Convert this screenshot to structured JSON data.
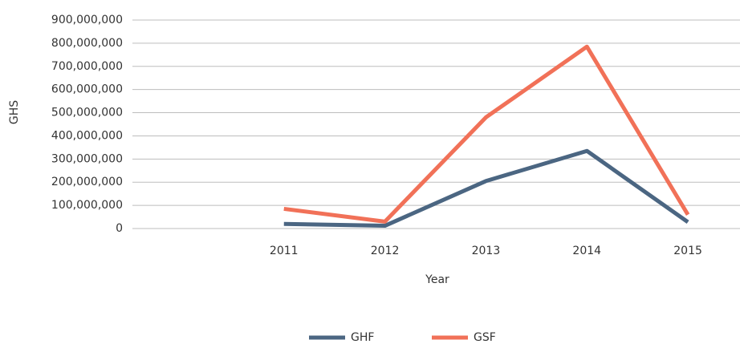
{
  "chart_data": {
    "type": "line",
    "x_label": "Year",
    "y_label": "GHS",
    "categories": [
      null,
      "2011",
      "2012",
      "2013",
      "2014",
      "2015"
    ],
    "series": [
      {
        "name": "GHF",
        "color": "#4b6682",
        "values": [
          null,
          20000000,
          12000000,
          205000000,
          335000000,
          28000000
        ]
      },
      {
        "name": "GSF",
        "color": "#f17158",
        "values": [
          null,
          85000000,
          30000000,
          480000000,
          785000000,
          60000000
        ]
      }
    ],
    "ylim": [
      0,
      900000000
    ],
    "yticks": [
      0,
      {
        "value": 100000000,
        "label": "100,000,000"
      },
      {
        "value": 200000000,
        "label": "200,000,000"
      },
      {
        "value": 300000000,
        "label": "300,000,000"
      },
      {
        "value": 400000000,
        "label": "400,000,000"
      },
      {
        "value": 500000000,
        "label": "500,000,000"
      },
      {
        "value": 600000000,
        "label": "600,000,000"
      },
      {
        "value": 700000000,
        "label": "700,000,000"
      },
      {
        "value": 800000000,
        "label": "800,000,000"
      },
      {
        "value": 900000000,
        "label": "900,000,000"
      }
    ],
    "grid": true,
    "legend": "bottom"
  }
}
